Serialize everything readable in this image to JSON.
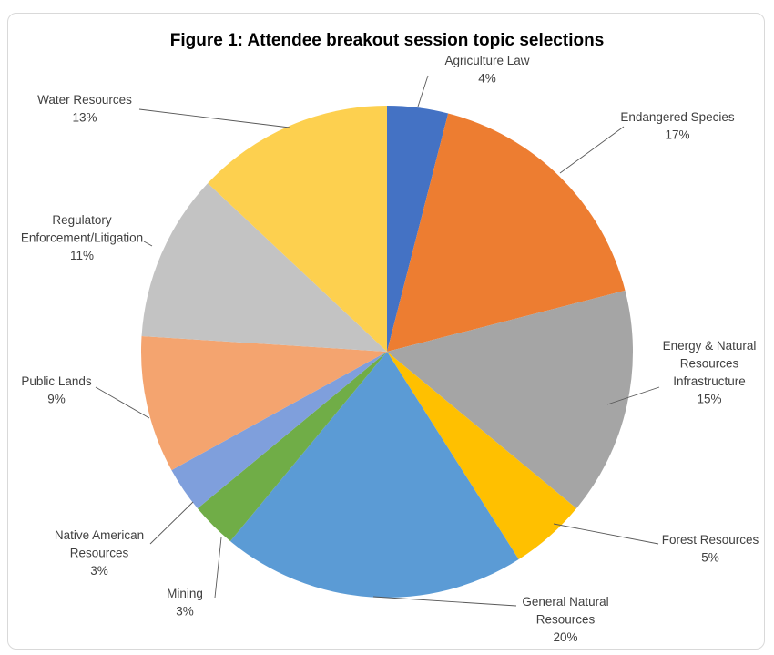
{
  "chart_data": {
    "type": "pie",
    "title": "Figure 1: Attendee breakout session topic selections",
    "slices": [
      {
        "label": [
          "Agriculture Law"
        ],
        "pct_label": "4%",
        "value": 4,
        "color": "#4472C4"
      },
      {
        "label": [
          "Endangered Species"
        ],
        "pct_label": "17%",
        "value": 17,
        "color": "#ED7D31"
      },
      {
        "label": [
          "Energy & Natural",
          "Resources",
          "Infrastructure"
        ],
        "pct_label": "15%",
        "value": 15,
        "color": "#A5A5A5"
      },
      {
        "label": [
          "Forest Resources"
        ],
        "pct_label": "5%",
        "value": 5,
        "color": "#FFC000"
      },
      {
        "label": [
          "General Natural",
          "Resources"
        ],
        "pct_label": "20%",
        "value": 20,
        "color": "#5B9BD5"
      },
      {
        "label": [
          "Mining"
        ],
        "pct_label": "3%",
        "value": 3,
        "color": "#70AD47"
      },
      {
        "label": [
          "Native American",
          "Resources"
        ],
        "pct_label": "3%",
        "value": 3,
        "color": "#7F9FDC"
      },
      {
        "label": [
          "Public Lands"
        ],
        "pct_label": "9%",
        "value": 9,
        "color": "#F4A46F"
      },
      {
        "label": [
          "Regulatory",
          "Enforcement/Litigation"
        ],
        "pct_label": "11%",
        "value": 11,
        "color": "#C3C3C3"
      },
      {
        "label": [
          "Water Resources"
        ],
        "pct_label": "13%",
        "value": 13,
        "color": "#FDD04F"
      }
    ]
  }
}
